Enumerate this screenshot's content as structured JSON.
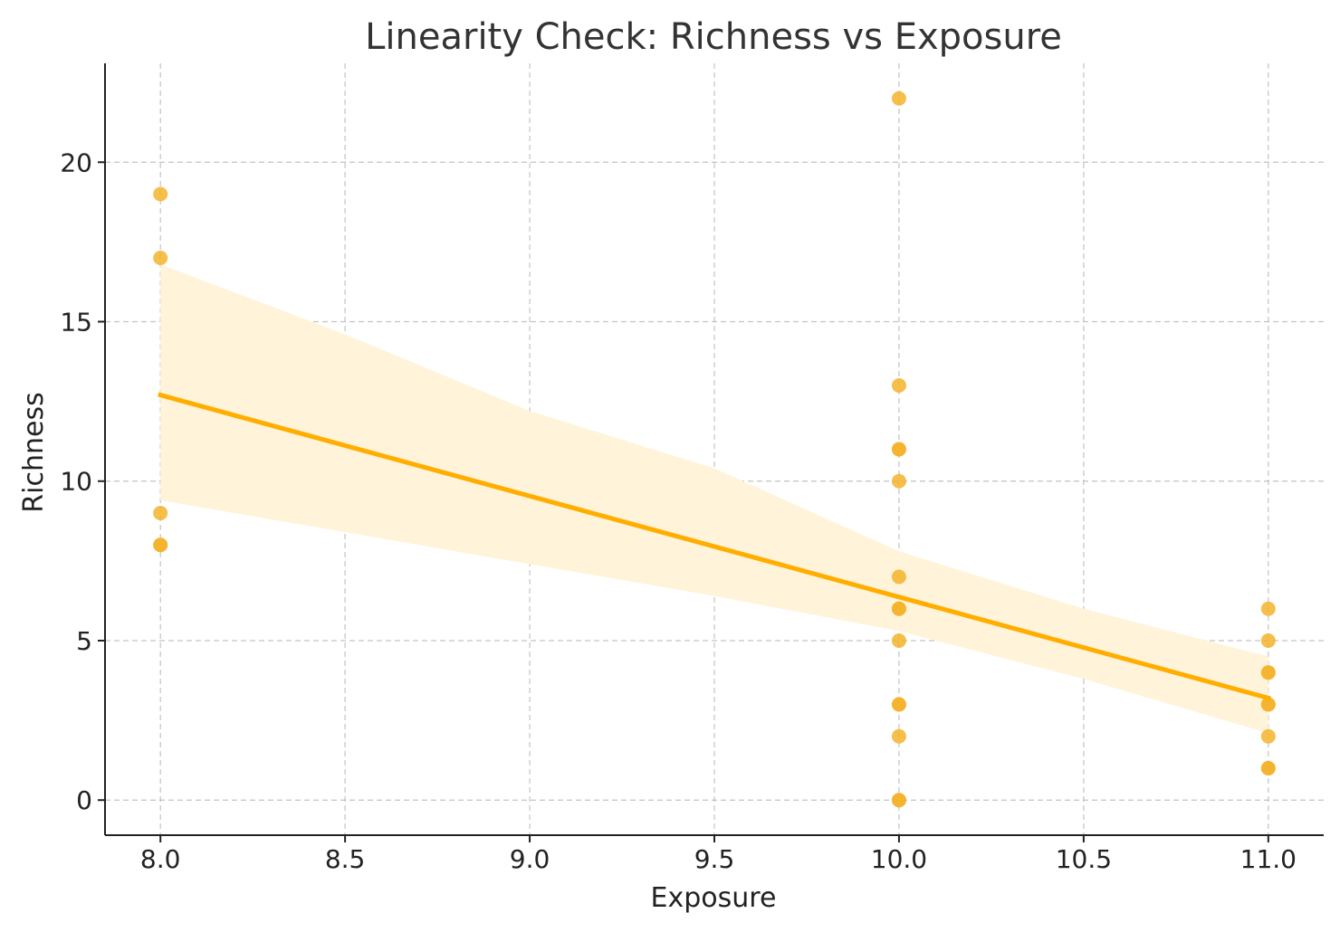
{
  "chart_data": {
    "type": "scatter",
    "title": "Linearity Check: Richness vs Exposure",
    "xlabel": "Exposure",
    "ylabel": "Richness",
    "xlim": [
      7.85,
      11.15
    ],
    "ylim": [
      -1.1,
      23.1
    ],
    "xticks": [
      8.0,
      8.5,
      9.0,
      9.5,
      10.0,
      10.5,
      11.0
    ],
    "xtick_labels": [
      "8.0",
      "8.5",
      "9.0",
      "9.5",
      "10.0",
      "10.5",
      "11.0"
    ],
    "yticks": [
      0,
      5,
      10,
      15,
      20
    ],
    "ytick_labels": [
      "0",
      "5",
      "10",
      "15",
      "20"
    ],
    "grid": true,
    "colors": {
      "points": "#f5b32a",
      "line": "#ffae00",
      "band": "#fff3d9"
    },
    "points": [
      {
        "x": 8,
        "y": 19
      },
      {
        "x": 8,
        "y": 17
      },
      {
        "x": 8,
        "y": 9
      },
      {
        "x": 8,
        "y": 8
      },
      {
        "x": 8,
        "y": 8
      },
      {
        "x": 10,
        "y": 22
      },
      {
        "x": 10,
        "y": 13
      },
      {
        "x": 10,
        "y": 11
      },
      {
        "x": 10,
        "y": 11
      },
      {
        "x": 10,
        "y": 10
      },
      {
        "x": 10,
        "y": 7
      },
      {
        "x": 10,
        "y": 6
      },
      {
        "x": 10,
        "y": 6
      },
      {
        "x": 10,
        "y": 5
      },
      {
        "x": 10,
        "y": 3
      },
      {
        "x": 10,
        "y": 3
      },
      {
        "x": 10,
        "y": 2
      },
      {
        "x": 10,
        "y": 0
      },
      {
        "x": 10,
        "y": 0
      },
      {
        "x": 11,
        "y": 6
      },
      {
        "x": 11,
        "y": 5
      },
      {
        "x": 11,
        "y": 4
      },
      {
        "x": 11,
        "y": 4
      },
      {
        "x": 11,
        "y": 3
      },
      {
        "x": 11,
        "y": 3
      },
      {
        "x": 11,
        "y": 2
      },
      {
        "x": 11,
        "y": 1
      },
      {
        "x": 11,
        "y": 1
      }
    ],
    "regression_line": [
      {
        "x": 8.0,
        "y": 12.7
      },
      {
        "x": 11.0,
        "y": 3.2
      }
    ],
    "confidence_band": [
      {
        "x": 8.0,
        "lower": 9.4,
        "upper": 16.8
      },
      {
        "x": 8.5,
        "lower": 8.4,
        "upper": 14.6
      },
      {
        "x": 9.0,
        "lower": 7.4,
        "upper": 12.2
      },
      {
        "x": 9.5,
        "lower": 6.4,
        "upper": 10.4
      },
      {
        "x": 10.0,
        "lower": 5.3,
        "upper": 7.8
      },
      {
        "x": 10.5,
        "lower": 3.8,
        "upper": 6.0
      },
      {
        "x": 11.0,
        "lower": 2.1,
        "upper": 4.5
      }
    ]
  }
}
